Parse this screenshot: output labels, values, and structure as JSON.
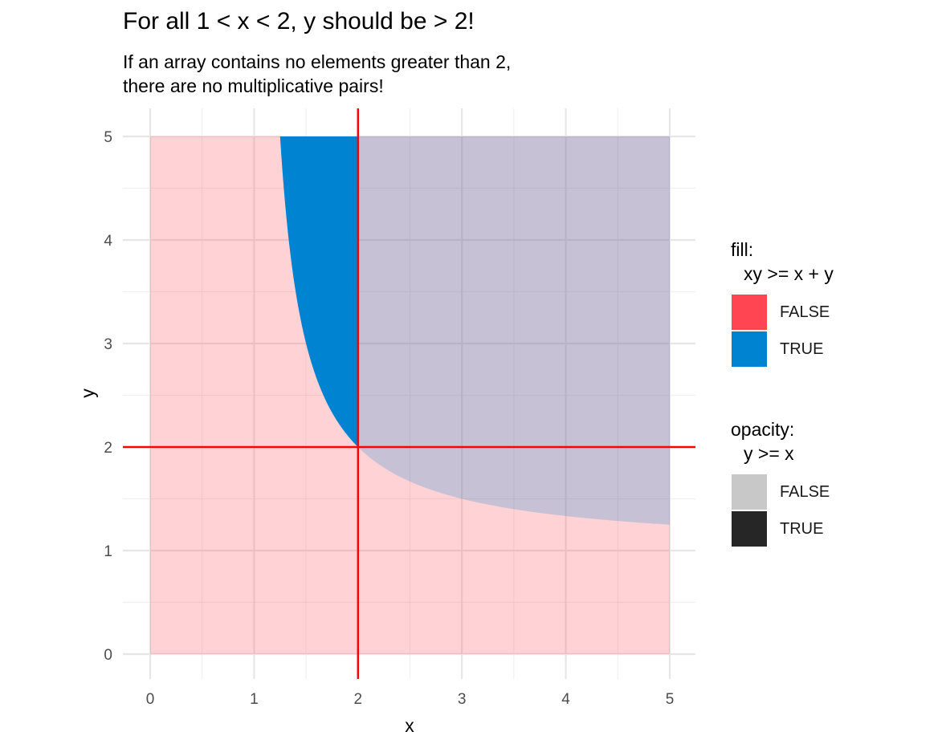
{
  "title": "For all 1 < x < 2, y should be > 2!",
  "subtitle": [
    "If an array contains no elements greater than 2,",
    "there are no multiplicative pairs!"
  ],
  "chart_data": {
    "type": "heatmap",
    "description": "",
    "xlabel": "x",
    "ylabel": "y",
    "xlim": [
      0,
      5
    ],
    "ylim": [
      0,
      5
    ],
    "xticks": [
      0,
      1,
      2,
      3,
      4,
      5
    ],
    "yticks": [
      0,
      1,
      2,
      3,
      4,
      5
    ],
    "reference_lines": {
      "vertical_x": 2,
      "horizontal_y": 2,
      "color": "#ff0000"
    },
    "boundary_curve": {
      "equation": "y = x / (x - 1)",
      "points": [
        [
          1.25,
          5
        ],
        [
          1.3,
          4.33
        ],
        [
          1.4,
          3.5
        ],
        [
          1.5,
          3
        ],
        [
          1.6,
          2.67
        ],
        [
          1.75,
          2.33
        ],
        [
          2,
          2
        ],
        [
          2.5,
          1.67
        ],
        [
          3,
          1.5
        ],
        [
          3.5,
          1.4
        ],
        [
          4,
          1.33
        ],
        [
          4.5,
          1.29
        ],
        [
          5,
          1.25
        ]
      ]
    },
    "fill_legend": {
      "title": [
        "fill:",
        "xy >= x + y"
      ],
      "entries": [
        {
          "label": "FALSE",
          "color": "#ff4552"
        },
        {
          "label": "TRUE",
          "color": "#0084d1"
        }
      ]
    },
    "opacity_legend": {
      "title": [
        "opacity:",
        "y >= x"
      ],
      "entries": [
        {
          "label": "FALSE",
          "color": "#c8c8c8"
        },
        {
          "label": "TRUE",
          "color": "#262626"
        }
      ]
    },
    "grid": true
  }
}
